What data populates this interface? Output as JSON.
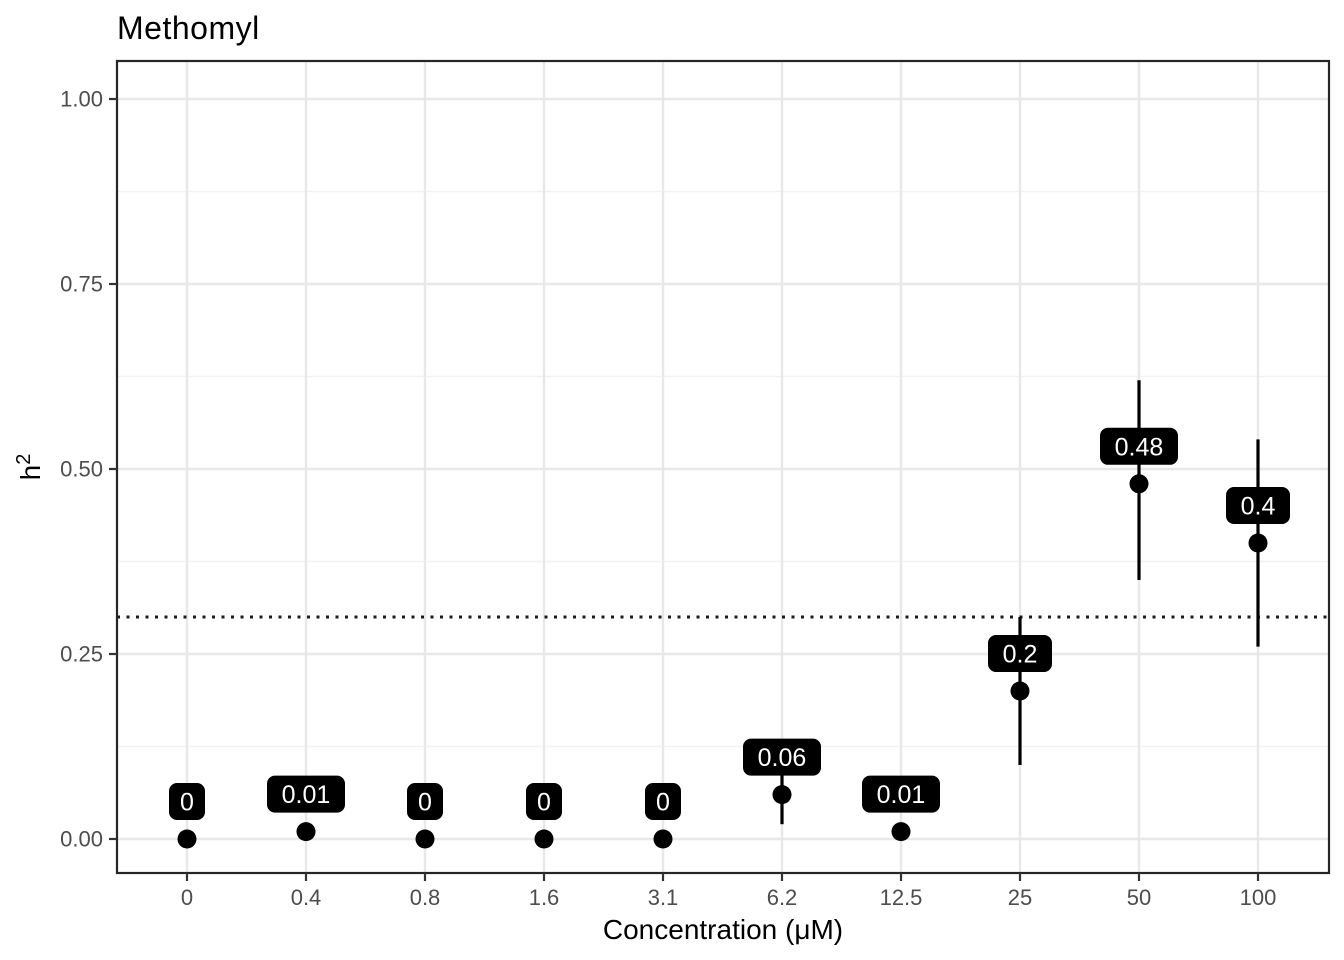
{
  "title": "Methomyl",
  "chart_data": {
    "type": "scatter",
    "title": "Methomyl",
    "xlabel": "Concentration (μM)",
    "ylabel": "h²",
    "ylabel_base": "h",
    "ylabel_exp": "2",
    "categories": [
      "0",
      "0.4",
      "0.8",
      "1.6",
      "3.1",
      "6.2",
      "12.5",
      "25",
      "50",
      "100"
    ],
    "values": [
      0,
      0.01,
      0,
      0,
      0,
      0.06,
      0.01,
      0.2,
      0.48,
      0.4
    ],
    "point_labels": [
      "0",
      "0.01",
      "0",
      "0",
      "0",
      "0.06",
      "0.01",
      "0.2",
      "0.48",
      "0.4"
    ],
    "ci_low": [
      null,
      null,
      null,
      null,
      null,
      0.02,
      null,
      0.1,
      0.35,
      0.26
    ],
    "ci_high": [
      null,
      null,
      null,
      null,
      null,
      0.1,
      null,
      0.3,
      0.62,
      0.54
    ],
    "reference_line_y": 0.3,
    "reference_line_style": "dotted",
    "y_ticks": [
      0,
      0.25,
      0.5,
      0.75,
      1.0
    ],
    "y_tick_labels": [
      "0.00",
      "0.25",
      "0.50",
      "0.75",
      "1.00"
    ],
    "ylim": [
      -0.05,
      1.05
    ],
    "grid": true,
    "legend": false,
    "colors": {
      "point": "#000000",
      "error_bar": "#000000",
      "label_bg": "#000000",
      "label_text": "#FFFFFF",
      "grid_major": "#E8E8E8",
      "grid_minor": "#F2F2F2",
      "axis_text": "#4D4D4D",
      "panel_border": "#262626",
      "reference_line": "#1A1A1A",
      "panel_bg": "#FFFFFF"
    }
  }
}
